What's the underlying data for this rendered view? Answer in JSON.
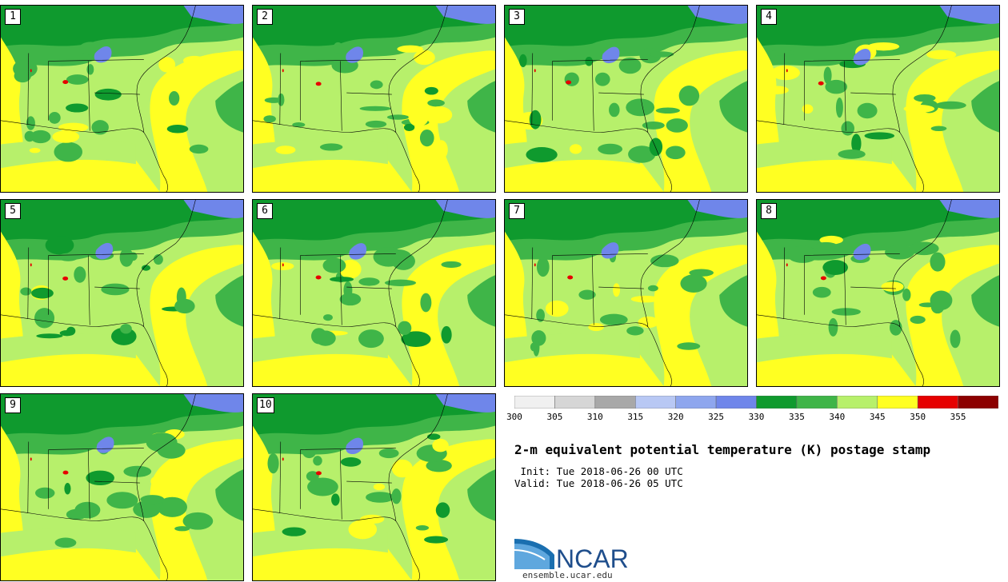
{
  "panels": [
    {
      "label": "1"
    },
    {
      "label": "2"
    },
    {
      "label": "3"
    },
    {
      "label": "4"
    },
    {
      "label": "5"
    },
    {
      "label": "6"
    },
    {
      "label": "7"
    },
    {
      "label": "8"
    },
    {
      "label": "9"
    },
    {
      "label": "10"
    }
  ],
  "colorbar": {
    "ticks": [
      "300",
      "305",
      "310",
      "315",
      "320",
      "325",
      "330",
      "335",
      "340",
      "345",
      "350",
      "355"
    ],
    "colors": [
      "#f0f0f0",
      "#d6d6d6",
      "#a8a8a8",
      "#b8c8f4",
      "#8ea6ee",
      "#6f86ea",
      "#0f9a2e",
      "#3fb548",
      "#b7f06b",
      "#ffff22",
      "#e60000",
      "#8c0000"
    ]
  },
  "title": "2-m equivalent potential temperature (K) postage stamp",
  "init": " Init: Tue 2018-06-26 00 UTC",
  "valid": "Valid: Tue 2018-06-26 05 UTC",
  "logo": {
    "text": "NCAR",
    "url_text": "ensemble.ucar.edu"
  }
}
